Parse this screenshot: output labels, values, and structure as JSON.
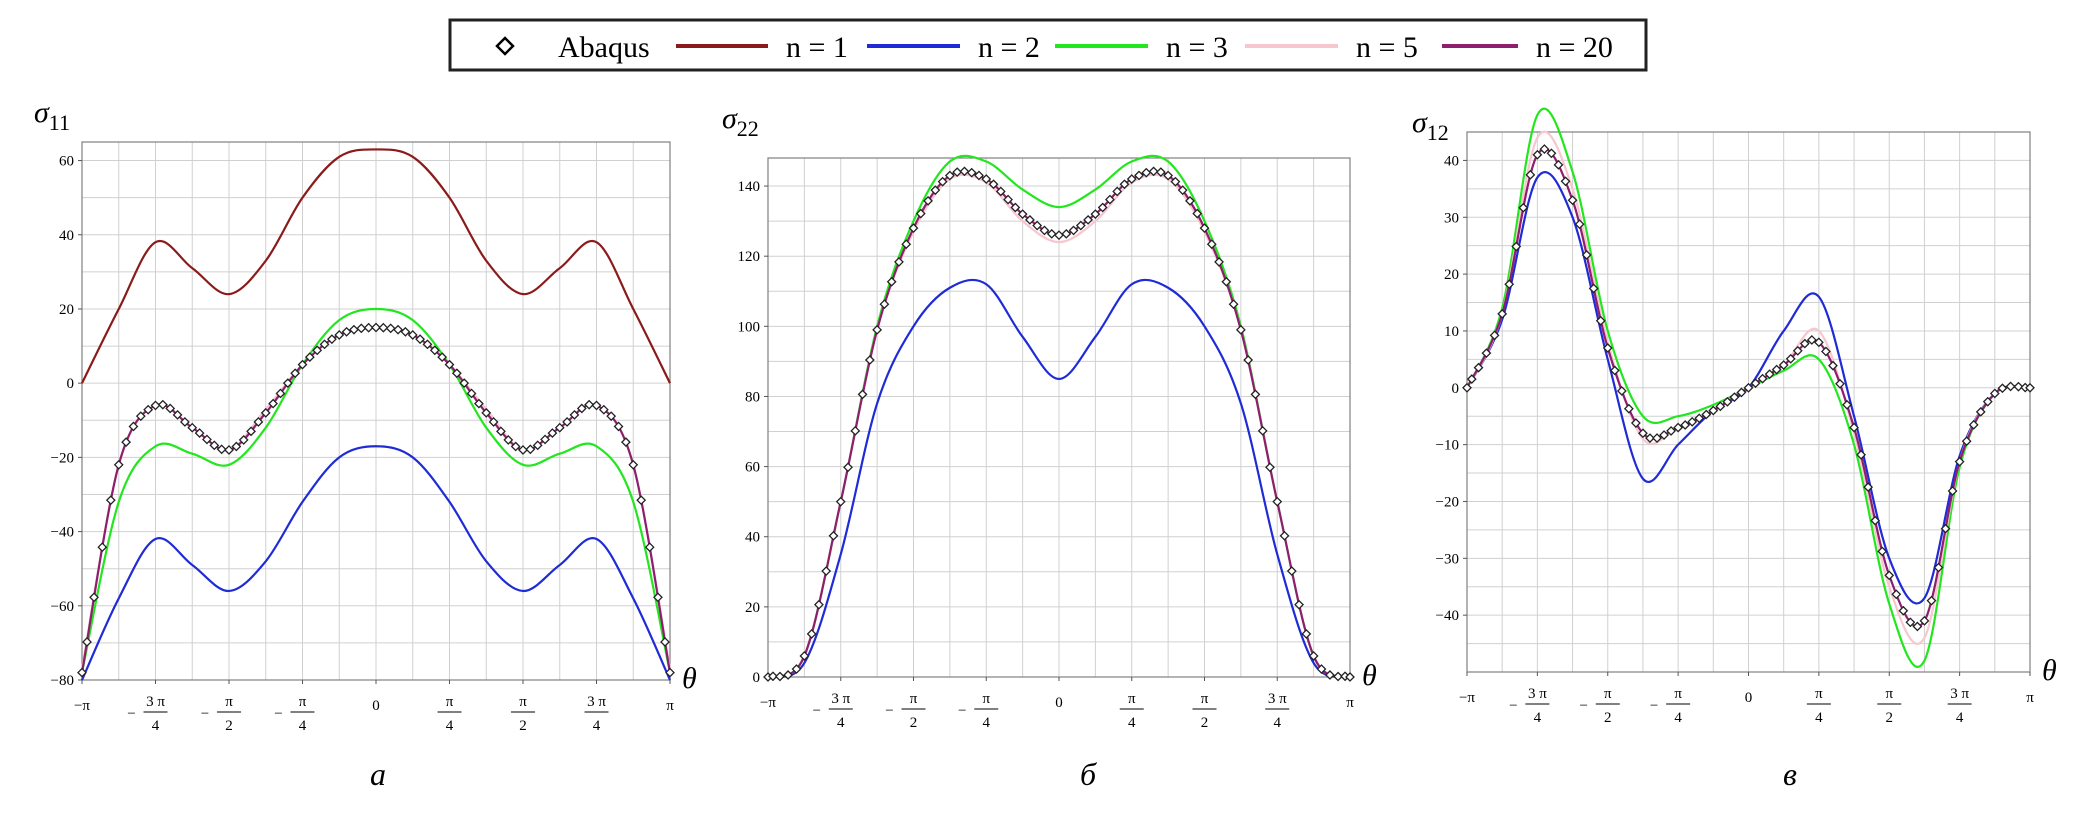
{
  "legend": {
    "entries": [
      {
        "label": "Abaqus",
        "marker": "diamond",
        "color": "#000000"
      },
      {
        "label": "n = 1",
        "color": "#8b1a1a"
      },
      {
        "label": "n = 2",
        "color": "#1f2bd6"
      },
      {
        "label": "n = 3",
        "color": "#22e61e"
      },
      {
        "label": "n = 5",
        "color": "#f7c6cf"
      },
      {
        "label": "n = 20",
        "color": "#8e1e6e"
      }
    ]
  },
  "chart_data": [
    {
      "type": "line",
      "caption": "а",
      "ylabel": "σ11",
      "xlabel": "θ",
      "xlim": [
        -3.14159,
        3.14159
      ],
      "ylim": [
        -80,
        65
      ],
      "xticks": [
        "−π",
        "−3π/4",
        "−π/2",
        "−π/4",
        "0",
        "π/4",
        "π/2",
        "3π/4",
        "π"
      ],
      "yticks": [
        -80,
        -60,
        -40,
        -20,
        0,
        20,
        40,
        60
      ],
      "series": [
        {
          "name": "n = 1",
          "x": [
            -3.1416,
            -2.7489,
            -2.3562,
            -1.9635,
            -1.5708,
            -1.1781,
            -0.7854,
            -0.3927,
            0,
            0.3927,
            0.7854,
            1.1781,
            1.5708,
            1.9635,
            2.3562,
            2.7489,
            3.1416
          ],
          "y": [
            0,
            20,
            38,
            31,
            24,
            33,
            50,
            61,
            63,
            61,
            50,
            33,
            24,
            31,
            38,
            20,
            0
          ]
        },
        {
          "name": "n = 2",
          "x": [
            -3.1416,
            -2.7489,
            -2.3562,
            -1.9635,
            -1.5708,
            -1.1781,
            -0.7854,
            -0.3927,
            0,
            0.3927,
            0.7854,
            1.1781,
            1.5708,
            1.9635,
            2.3562,
            2.7489,
            3.1416
          ],
          "y": [
            -80,
            -58,
            -42,
            -49,
            -56,
            -48,
            -32,
            -20,
            -17,
            -20,
            -32,
            -48,
            -56,
            -49,
            -42,
            -58,
            -80
          ]
        },
        {
          "name": "n = 3",
          "x": [
            -3.1416,
            -2.7489,
            -2.3562,
            -1.9635,
            -1.5708,
            -1.1781,
            -0.7854,
            -0.3927,
            0,
            0.3927,
            0.7854,
            1.1781,
            1.5708,
            1.9635,
            2.3562,
            2.7489,
            3.1416
          ],
          "y": [
            -78,
            -32,
            -17,
            -19,
            -22,
            -12,
            5,
            17,
            20,
            17,
            5,
            -12,
            -22,
            -19,
            -17,
            -32,
            -78
          ]
        },
        {
          "name": "n = 5",
          "x": [
            -3.1416,
            -2.7489,
            -2.3562,
            -1.9635,
            -1.5708,
            -1.1781,
            -0.7854,
            -0.3927,
            0,
            0.3927,
            0.7854,
            1.1781,
            1.5708,
            1.9635,
            2.3562,
            2.7489,
            3.1416
          ],
          "y": [
            -77,
            -22,
            -6,
            -12,
            -18,
            -7,
            5,
            13,
            15,
            13,
            5,
            -7,
            -18,
            -12,
            -6,
            -22,
            -77
          ]
        },
        {
          "name": "n = 20",
          "x": [
            -3.1416,
            -2.7489,
            -2.3562,
            -1.9635,
            -1.5708,
            -1.1781,
            -0.7854,
            -0.3927,
            0,
            0.3927,
            0.7854,
            1.1781,
            1.5708,
            1.9635,
            2.3562,
            2.7489,
            3.1416
          ],
          "y": [
            -78,
            -22,
            -6,
            -12,
            -18,
            -8,
            5,
            13,
            15,
            13,
            5,
            -8,
            -18,
            -12,
            -6,
            -22,
            -78
          ]
        },
        {
          "name": "Abaqus",
          "marker": "diamond",
          "x": [
            -3.1416,
            -2.7489,
            -2.3562,
            -1.9635,
            -1.5708,
            -1.1781,
            -0.7854,
            -0.3927,
            0,
            0.3927,
            0.7854,
            1.1781,
            1.5708,
            1.9635,
            2.3562,
            2.7489,
            3.1416
          ],
          "y": [
            -78,
            -22,
            -6,
            -12,
            -18,
            -8,
            5,
            13,
            15,
            13,
            5,
            -8,
            -18,
            -12,
            -6,
            -22,
            -78
          ]
        }
      ]
    },
    {
      "type": "line",
      "caption": "б",
      "ylabel": "σ22",
      "xlabel": "θ",
      "xlim": [
        -3.14159,
        3.14159
      ],
      "ylim": [
        0,
        148
      ],
      "xticks": [
        "−π",
        "−3π/4",
        "−π/2",
        "−π/4",
        "0",
        "π/4",
        "π/2",
        "3π/4",
        "π"
      ],
      "yticks": [
        0,
        20,
        40,
        60,
        80,
        100,
        120,
        140
      ],
      "series": [
        {
          "name": "n = 2",
          "x": [
            -3.1416,
            -2.7489,
            -2.3562,
            -1.9635,
            -1.5708,
            -1.1781,
            -0.7854,
            -0.3927,
            0,
            0.3927,
            0.7854,
            1.1781,
            1.5708,
            1.9635,
            2.3562,
            2.7489,
            3.1416
          ],
          "y": [
            0,
            4,
            35,
            78,
            100,
            111,
            112,
            97,
            85,
            97,
            112,
            111,
            100,
            78,
            35,
            4,
            0
          ]
        },
        {
          "name": "n = 3",
          "x": [
            -3.1416,
            -2.7489,
            -2.3562,
            -1.9635,
            -1.5708,
            -1.1781,
            -0.7854,
            -0.3927,
            0,
            0.3927,
            0.7854,
            1.1781,
            1.5708,
            1.9635,
            2.3562,
            2.7489,
            3.1416
          ],
          "y": [
            0,
            6,
            50,
            100,
            130,
            147,
            147,
            139,
            134,
            139,
            147,
            147,
            130,
            100,
            50,
            6,
            0
          ]
        },
        {
          "name": "n = 5",
          "x": [
            -3.1416,
            -2.7489,
            -2.3562,
            -1.9635,
            -1.5708,
            -1.1781,
            -0.7854,
            -0.3927,
            0,
            0.3927,
            0.7854,
            1.1781,
            1.5708,
            1.9635,
            2.3562,
            2.7489,
            3.1416
          ],
          "y": [
            0,
            6,
            50,
            99,
            127,
            142,
            141,
            130,
            124,
            130,
            141,
            142,
            127,
            99,
            50,
            6,
            0
          ]
        },
        {
          "name": "n = 20",
          "x": [
            -3.1416,
            -2.7489,
            -2.3562,
            -1.9635,
            -1.5708,
            -1.1781,
            -0.7854,
            -0.3927,
            0,
            0.3927,
            0.7854,
            1.1781,
            1.5708,
            1.9635,
            2.3562,
            2.7489,
            3.1416
          ],
          "y": [
            0,
            6,
            50,
            99,
            128,
            143,
            142,
            132,
            126,
            132,
            142,
            143,
            128,
            99,
            50,
            6,
            0
          ]
        },
        {
          "name": "Abaqus",
          "marker": "diamond",
          "x": [
            -3.1416,
            -2.7489,
            -2.3562,
            -1.9635,
            -1.5708,
            -1.1781,
            -0.7854,
            -0.3927,
            0,
            0.3927,
            0.7854,
            1.1781,
            1.5708,
            1.9635,
            2.3562,
            2.7489,
            3.1416
          ],
          "y": [
            0,
            6,
            50,
            99,
            128,
            143,
            142,
            132,
            126,
            132,
            142,
            143,
            128,
            99,
            50,
            6,
            0
          ]
        }
      ]
    },
    {
      "type": "line",
      "caption": "в",
      "ylabel": "σ12",
      "xlabel": "θ",
      "xlim": [
        -3.14159,
        3.14159
      ],
      "ylim": [
        -50,
        45
      ],
      "xticks": [
        "−π",
        "−3π/4",
        "−π/2",
        "−π/4",
        "0",
        "π/4",
        "π/2",
        "3π/4",
        "π"
      ],
      "yticks": [
        -40,
        -30,
        -20,
        -10,
        0,
        10,
        20,
        30,
        40
      ],
      "series": [
        {
          "name": "n = 2",
          "x": [
            -3.1416,
            -2.7489,
            -2.3562,
            -1.9635,
            -1.5708,
            -1.1781,
            -0.7854,
            -0.3927,
            0,
            0.3927,
            0.7854,
            1.1781,
            1.5708,
            1.9635,
            2.3562,
            2.7489,
            3.1416
          ],
          "y": [
            0,
            12,
            37,
            30,
            5,
            -16,
            -10,
            -4,
            0,
            10,
            16,
            -5,
            -30,
            -37,
            -12,
            -1,
            0
          ]
        },
        {
          "name": "n = 3",
          "x": [
            -3.1416,
            -2.7489,
            -2.3562,
            -1.9635,
            -1.5708,
            -1.1781,
            -0.7854,
            -0.3927,
            0,
            0.3927,
            0.7854,
            1.1781,
            1.5708,
            1.9635,
            2.3562,
            2.7489,
            3.1416
          ],
          "y": [
            0,
            14,
            48,
            38,
            10,
            -5,
            -5,
            -3,
            0,
            3,
            5,
            -10,
            -38,
            -48,
            -14,
            -1,
            0
          ]
        },
        {
          "name": "n = 5",
          "x": [
            -3.1416,
            -2.7489,
            -2.3562,
            -1.9635,
            -1.5708,
            -1.1781,
            -0.7854,
            -0.3927,
            0,
            0.3927,
            0.7854,
            1.1781,
            1.5708,
            1.9635,
            2.3562,
            2.7489,
            3.1416
          ],
          "y": [
            0,
            13,
            44,
            35,
            8,
            -9,
            -7,
            -4,
            0,
            4,
            10,
            -8,
            -35,
            -44,
            -13,
            -1,
            0
          ]
        },
        {
          "name": "n = 20",
          "x": [
            -3.1416,
            -2.7489,
            -2.3562,
            -1.9635,
            -1.5708,
            -1.1781,
            -0.7854,
            -0.3927,
            0,
            0.3927,
            0.7854,
            1.1781,
            1.5708,
            1.9635,
            2.3562,
            2.7489,
            3.1416
          ],
          "y": [
            0,
            13,
            41,
            33,
            7,
            -8,
            -7,
            -4,
            0,
            4,
            8,
            -7,
            -33,
            -41,
            -13,
            -1,
            0
          ]
        },
        {
          "name": "Abaqus",
          "marker": "diamond",
          "x": [
            -3.1416,
            -2.7489,
            -2.3562,
            -1.9635,
            -1.5708,
            -1.1781,
            -0.7854,
            -0.3927,
            0,
            0.3927,
            0.7854,
            1.1781,
            1.5708,
            1.9635,
            2.3562,
            2.7489,
            3.1416
          ],
          "y": [
            0,
            13,
            41,
            33,
            7,
            -8,
            -7,
            -4,
            0,
            4,
            8,
            -7,
            -33,
            -41,
            -13,
            -1,
            0
          ]
        }
      ]
    }
  ]
}
